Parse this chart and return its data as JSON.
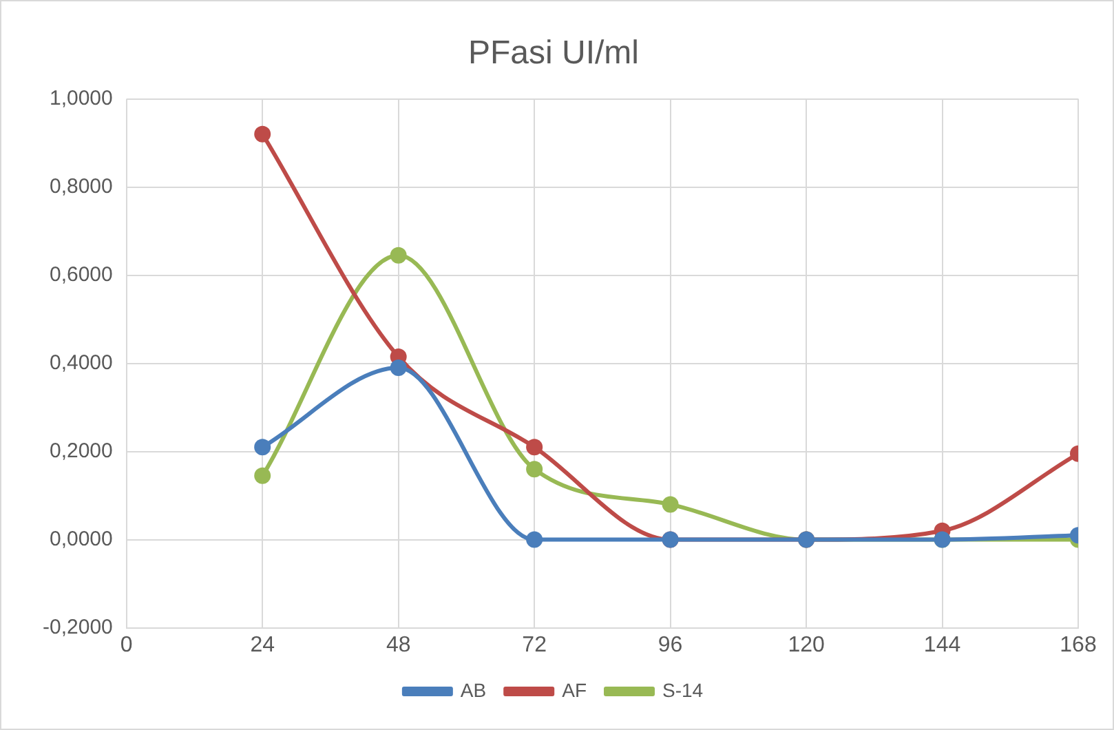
{
  "chart_data": {
    "type": "line",
    "title": "PFasi UI/ml",
    "x": [
      24,
      48,
      72,
      96,
      120,
      144,
      168
    ],
    "series": [
      {
        "name": "AB",
        "color": "#4a7ebb",
        "values": [
          0.21,
          0.39,
          0,
          0,
          0,
          0,
          0.01
        ]
      },
      {
        "name": "AF",
        "color": "#be4b48",
        "values": [
          0.92,
          0.415,
          0.21,
          0,
          0,
          0.02,
          0.195
        ]
      },
      {
        "name": "S-14",
        "color": "#98b954",
        "values": [
          0.145,
          0.645,
          0.16,
          0.08,
          0,
          0,
          0
        ]
      }
    ],
    "xlim": [
      0,
      168
    ],
    "xticks": [
      0,
      24,
      48,
      72,
      96,
      120,
      144,
      168
    ],
    "ylim": [
      -0.2,
      1.0
    ],
    "yticks": [
      {
        "value": -0.2,
        "label": "-0,2000"
      },
      {
        "value": 0,
        "label": "0,0000"
      },
      {
        "value": 0.2,
        "label": "0,2000"
      },
      {
        "value": 0.4,
        "label": "0,4000"
      },
      {
        "value": 0.6,
        "label": "0,6000"
      },
      {
        "value": 0.8,
        "label": "0,8000"
      },
      {
        "value": 1.0,
        "label": "1,0000"
      }
    ],
    "grid": true,
    "legend": "bottom",
    "marker": "circle",
    "line_style": "solid"
  }
}
